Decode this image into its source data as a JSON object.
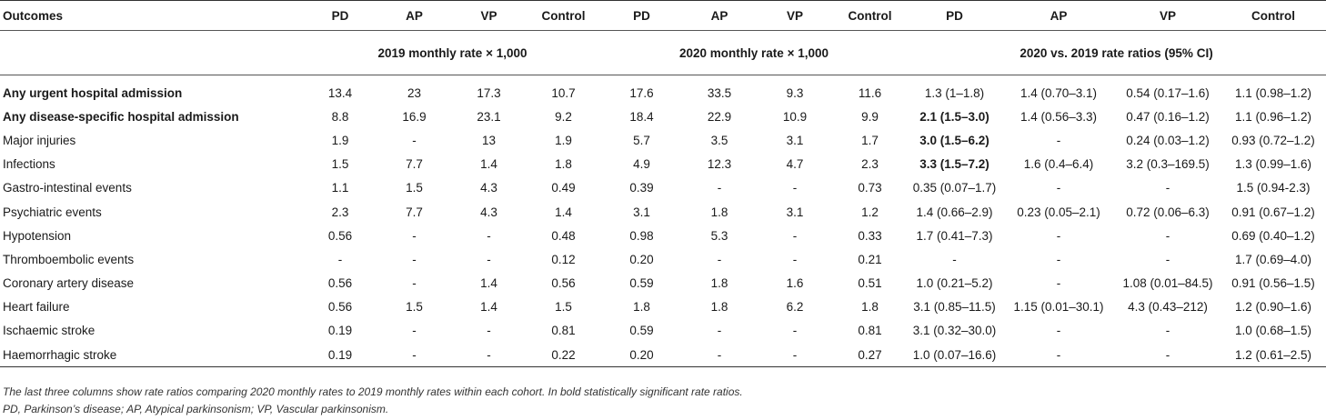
{
  "columns": [
    "Outcomes",
    "PD",
    "AP",
    "VP",
    "Control",
    "PD",
    "AP",
    "VP",
    "Control",
    "PD",
    "AP",
    "VP",
    "Control"
  ],
  "groups": [
    "2019 monthly rate × 1,000",
    "2020 monthly rate × 1,000",
    "2020 vs. 2019 rate ratios (95% CI)"
  ],
  "rows": [
    {
      "label": "Any urgent hospital admission",
      "bold": true,
      "cells": [
        "13.4",
        "23",
        "17.3",
        "10.7",
        "17.6",
        "33.5",
        "9.3",
        "11.6",
        "1.3 (1–1.8)",
        "1.4 (0.70–3.1)",
        "0.54 (0.17–1.6)",
        "1.1 (0.98–1.2)"
      ],
      "boldCells": []
    },
    {
      "label": "Any disease-specific hospital admission",
      "bold": true,
      "cells": [
        "8.8",
        "16.9",
        "23.1",
        "9.2",
        "18.4",
        "22.9",
        "10.9",
        "9.9",
        "2.1 (1.5–3.0)",
        "1.4 (0.56–3.3)",
        "0.47 (0.16–1.2)",
        "1.1 (0.96–1.2)"
      ],
      "boldCells": [
        8
      ]
    },
    {
      "label": "Major injuries",
      "bold": false,
      "cells": [
        "1.9",
        "-",
        "13",
        "1.9",
        "5.7",
        "3.5",
        "3.1",
        "1.7",
        "3.0 (1.5–6.2)",
        "-",
        "0.24 (0.03–1.2)",
        "0.93 (0.72–1.2)"
      ],
      "boldCells": [
        8
      ]
    },
    {
      "label": "Infections",
      "bold": false,
      "cells": [
        "1.5",
        "7.7",
        "1.4",
        "1.8",
        "4.9",
        "12.3",
        "4.7",
        "2.3",
        "3.3 (1.5–7.2)",
        "1.6 (0.4–6.4)",
        "3.2 (0.3–169.5)",
        "1.3 (0.99–1.6)"
      ],
      "boldCells": [
        8
      ]
    },
    {
      "label": "Gastro-intestinal events",
      "bold": false,
      "cells": [
        "1.1",
        "1.5",
        "4.3",
        "0.49",
        "0.39",
        "-",
        "-",
        "0.73",
        "0.35 (0.07–1.7)",
        "-",
        "-",
        "1.5 (0.94-2.3)"
      ],
      "boldCells": []
    },
    {
      "label": "Psychiatric events",
      "bold": false,
      "cells": [
        "2.3",
        "7.7",
        "4.3",
        "1.4",
        "3.1",
        "1.8",
        "3.1",
        "1.2",
        "1.4 (0.66–2.9)",
        "0.23 (0.05–2.1)",
        "0.72 (0.06–6.3)",
        "0.91 (0.67–1.2)"
      ],
      "boldCells": []
    },
    {
      "label": "Hypotension",
      "bold": false,
      "cells": [
        "0.56",
        "-",
        "-",
        "0.48",
        "0.98",
        "5.3",
        "-",
        "0.33",
        "1.7 (0.41–7.3)",
        "-",
        "-",
        "0.69 (0.40–1.2)"
      ],
      "boldCells": []
    },
    {
      "label": "Thromboembolic events",
      "bold": false,
      "cells": [
        "-",
        "-",
        "-",
        "0.12",
        "0.20",
        "-",
        "-",
        "0.21",
        "-",
        "-",
        "-",
        "1.7 (0.69–4.0)"
      ],
      "boldCells": []
    },
    {
      "label": "Coronary artery disease",
      "bold": false,
      "cells": [
        "0.56",
        "-",
        "1.4",
        "0.56",
        "0.59",
        "1.8",
        "1.6",
        "0.51",
        "1.0 (0.21–5.2)",
        "-",
        "1.08 (0.01–84.5)",
        "0.91 (0.56–1.5)"
      ],
      "boldCells": []
    },
    {
      "label": "Heart failure",
      "bold": false,
      "cells": [
        "0.56",
        "1.5",
        "1.4",
        "1.5",
        "1.8",
        "1.8",
        "6.2",
        "1.8",
        "3.1 (0.85–11.5)",
        "1.15 (0.01–30.1)",
        "4.3 (0.43–212)",
        "1.2 (0.90–1.6)"
      ],
      "boldCells": []
    },
    {
      "label": "Ischaemic stroke",
      "bold": false,
      "cells": [
        "0.19",
        "-",
        "-",
        "0.81",
        "0.59",
        "-",
        "-",
        "0.81",
        "3.1 (0.32–30.0)",
        "-",
        "-",
        "1.0 (0.68–1.5)"
      ],
      "boldCells": []
    },
    {
      "label": "Haemorrhagic stroke",
      "bold": false,
      "cells": [
        "0.19",
        "-",
        "-",
        "0.22",
        "0.20",
        "-",
        "-",
        "0.27",
        "1.0 (0.07–16.6)",
        "-",
        "-",
        "1.2 (0.61–2.5)"
      ],
      "boldCells": []
    }
  ],
  "footnotes": [
    "The last three columns show rate ratios comparing 2020 monthly rates to 2019 monthly rates within each cohort. In bold statistically significant rate ratios.",
    "PD, Parkinson’s disease; AP, Atypical parkinsonism; VP, Vascular parkinsonism."
  ]
}
